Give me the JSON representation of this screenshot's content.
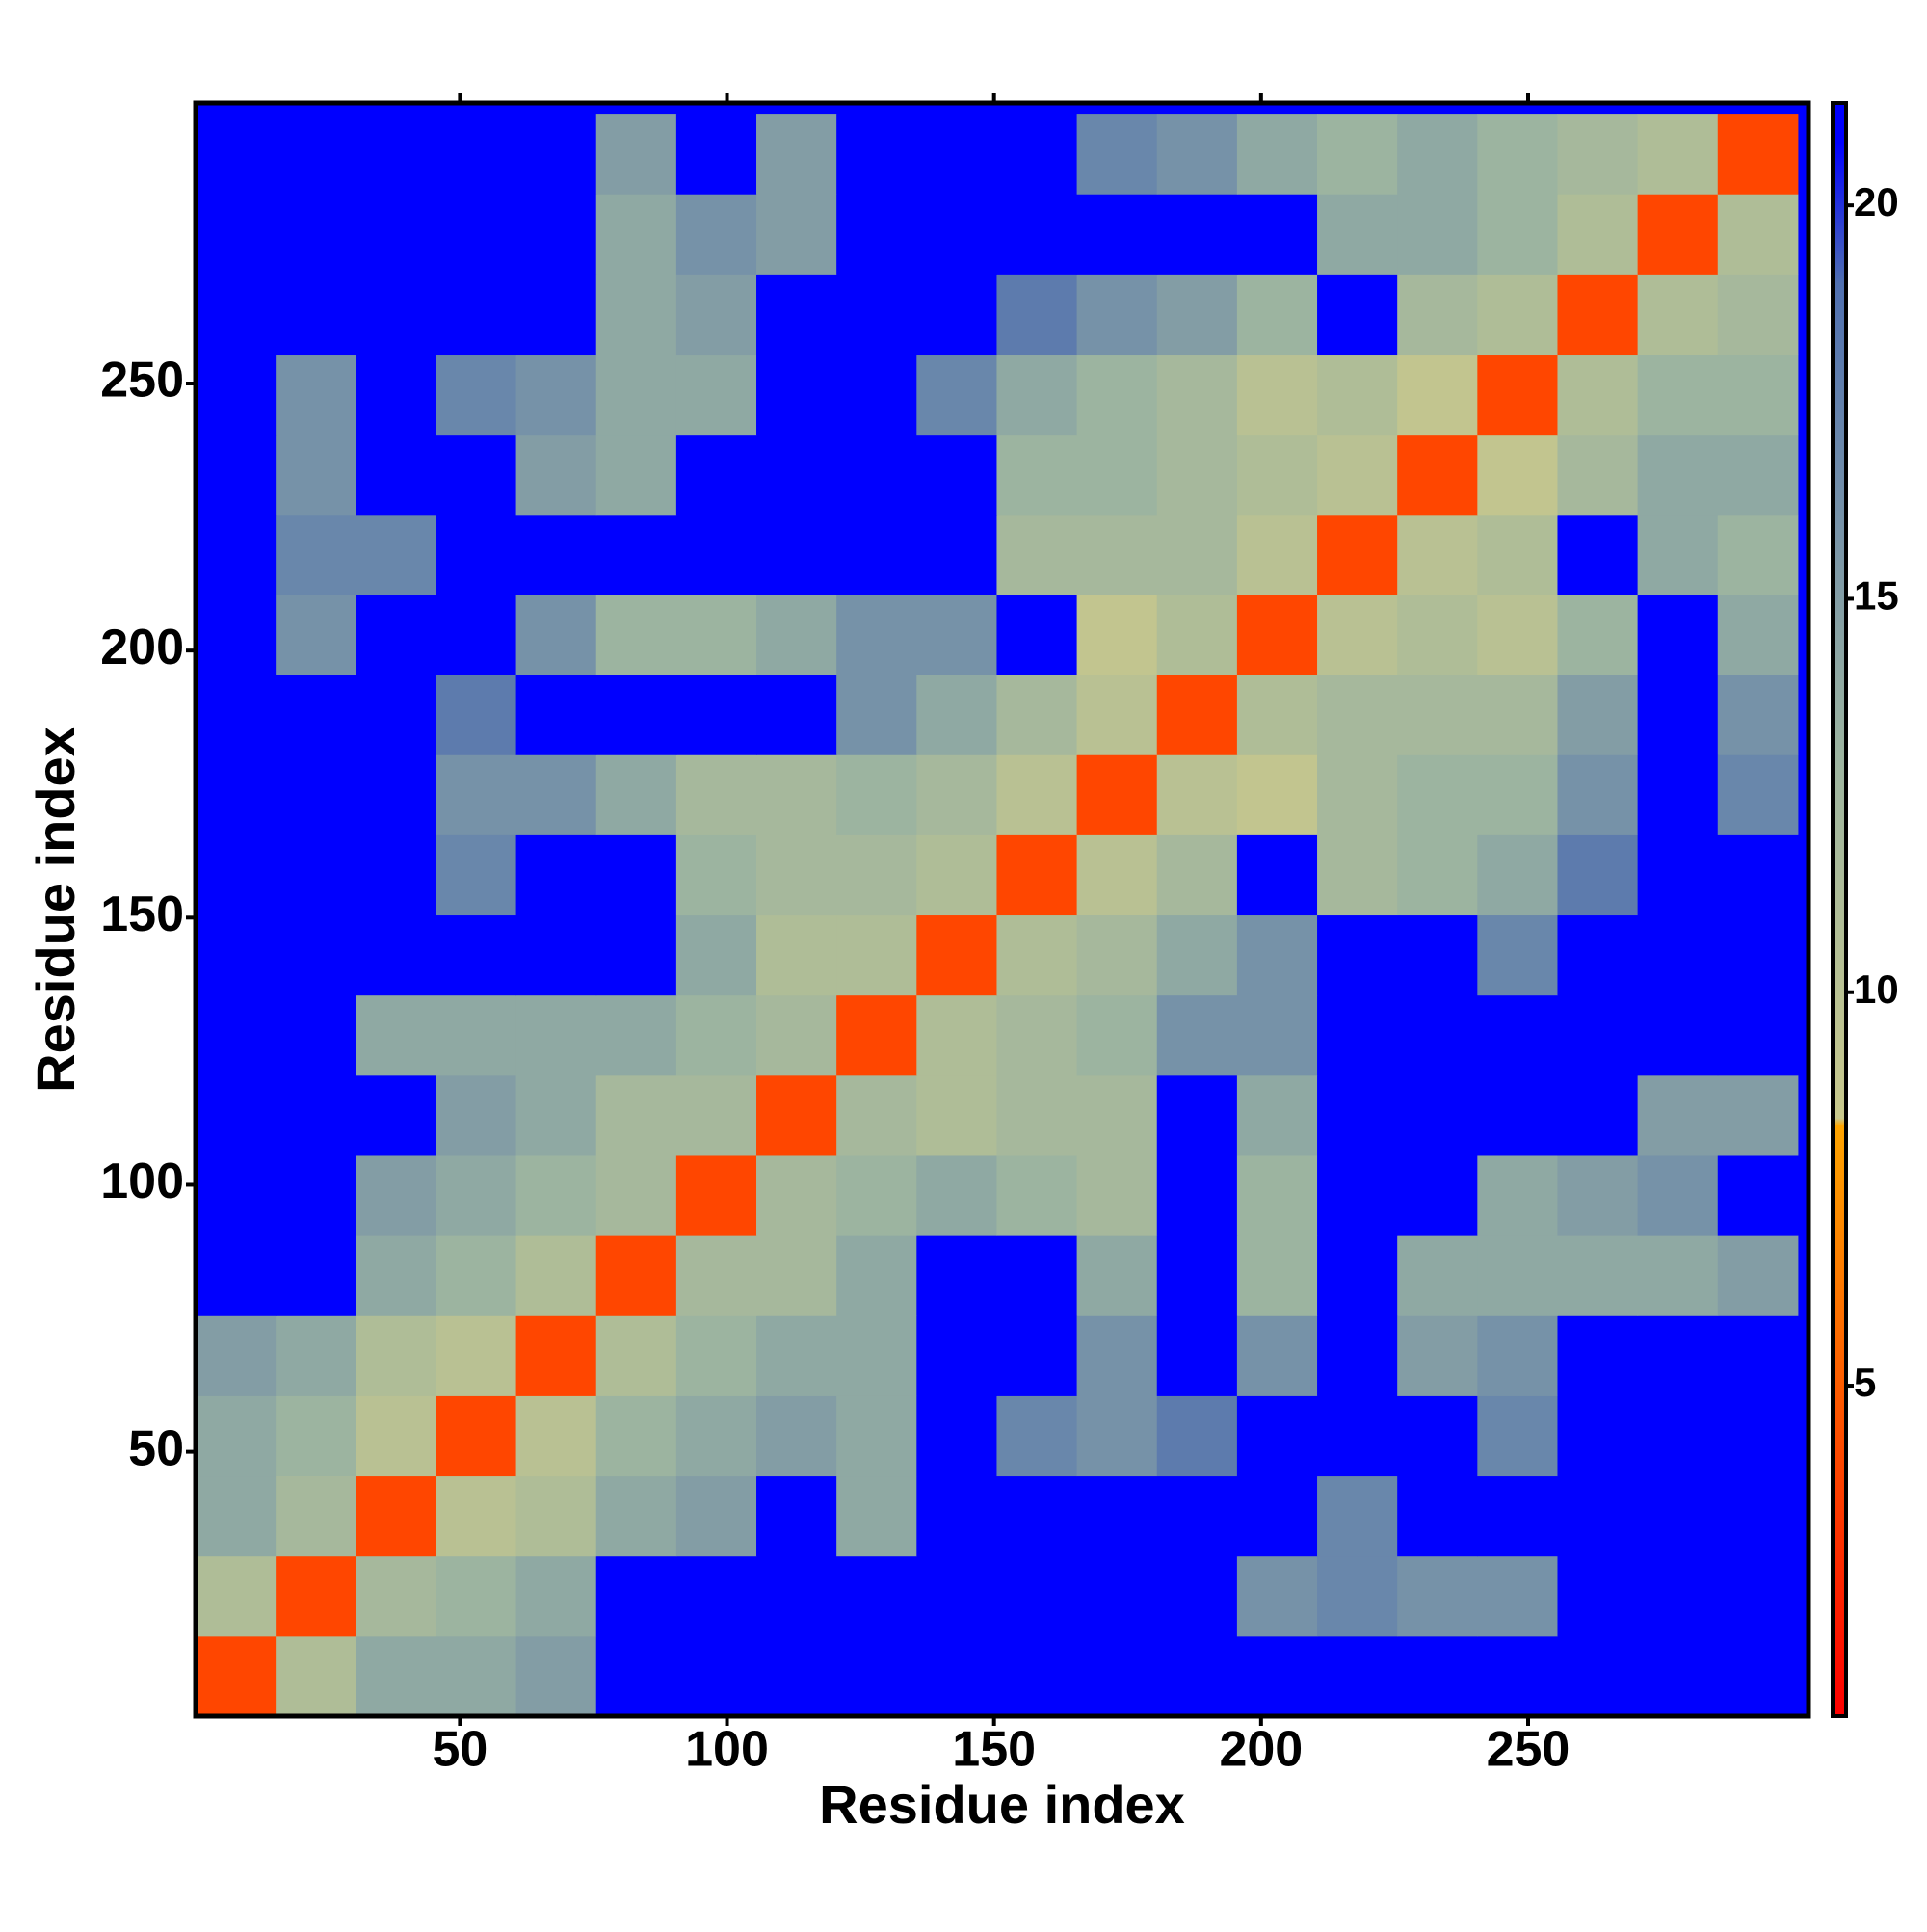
{
  "chart_data": {
    "type": "heatmap",
    "xlabel": "Residue index",
    "ylabel": "Residue index",
    "bins": [
      0.5,
      15.5,
      30.5,
      45.5,
      60.5,
      75.5,
      90.5,
      105.5,
      120.5,
      135.5,
      150.5,
      165.5,
      180.5,
      195.5,
      210.5,
      225.5,
      240.5,
      255.5,
      270.5,
      285.5,
      300.5
    ],
    "xlim": [
      0.5,
      302.5
    ],
    "ylim": [
      0.5,
      302.5
    ],
    "xticks": [
      50,
      100,
      150,
      200,
      250
    ],
    "yticks": [
      50,
      100,
      150,
      200,
      250
    ],
    "values": [
      [
        4,
        11,
        14,
        14,
        15,
        21,
        21,
        21,
        21,
        21,
        21,
        21,
        21,
        21,
        21,
        21,
        21,
        21,
        21,
        21
      ],
      [
        11,
        4,
        12,
        13,
        14,
        21,
        21,
        21,
        21,
        21,
        21,
        21,
        21,
        16,
        17,
        16,
        16,
        21,
        21,
        21
      ],
      [
        14,
        12,
        4,
        10,
        11,
        14,
        15,
        21,
        14,
        21,
        21,
        21,
        21,
        21,
        17,
        21,
        21,
        21,
        21,
        21
      ],
      [
        14,
        13,
        10,
        4,
        10,
        13,
        14,
        15,
        14,
        21,
        17,
        16,
        18,
        21,
        21,
        21,
        17,
        21,
        21,
        21
      ],
      [
        15,
        14,
        11,
        10,
        4,
        11,
        13,
        14,
        14,
        21,
        21,
        16,
        21,
        16,
        21,
        15,
        16,
        21,
        21,
        21
      ],
      [
        21,
        21,
        14,
        13,
        11,
        4,
        12,
        12,
        14,
        21,
        21,
        14,
        21,
        13,
        21,
        14,
        14,
        14,
        14,
        15
      ],
      [
        21,
        21,
        15,
        14,
        13,
        12,
        4,
        12,
        13,
        14,
        13,
        12,
        21,
        13,
        21,
        21,
        14,
        15,
        16,
        21
      ],
      [
        21,
        21,
        21,
        15,
        14,
        12,
        12,
        4,
        12,
        11,
        12,
        12,
        21,
        14,
        21,
        21,
        21,
        21,
        15,
        15
      ],
      [
        21,
        21,
        14,
        14,
        14,
        14,
        13,
        12,
        4,
        11,
        12,
        13,
        16,
        16,
        21,
        21,
        21,
        21,
        21,
        21
      ],
      [
        21,
        21,
        21,
        21,
        21,
        21,
        14,
        11,
        11,
        4,
        11,
        12,
        14,
        16,
        21,
        21,
        17,
        21,
        21,
        21
      ],
      [
        21,
        21,
        21,
        17,
        21,
        21,
        13,
        12,
        12,
        11,
        4,
        10,
        12,
        21,
        12,
        13,
        14,
        18,
        21,
        21
      ],
      [
        21,
        21,
        21,
        16,
        16,
        14,
        12,
        12,
        13,
        12,
        10,
        4,
        10,
        9,
        12,
        13,
        13,
        16,
        21,
        17
      ],
      [
        21,
        21,
        21,
        18,
        21,
        21,
        21,
        21,
        16,
        14,
        12,
        10,
        4,
        11,
        12,
        12,
        12,
        15,
        21,
        16
      ],
      [
        21,
        16,
        21,
        21,
        16,
        13,
        13,
        14,
        16,
        16,
        21,
        9,
        11,
        4,
        10,
        11,
        10,
        13,
        21,
        14
      ],
      [
        21,
        17,
        17,
        21,
        21,
        21,
        21,
        21,
        21,
        21,
        12,
        12,
        12,
        10,
        4,
        10,
        11,
        21,
        14,
        13
      ],
      [
        21,
        16,
        21,
        21,
        15,
        14,
        21,
        21,
        21,
        21,
        13,
        13,
        12,
        11,
        10,
        4,
        9,
        12,
        14,
        14
      ],
      [
        21,
        16,
        21,
        17,
        16,
        14,
        14,
        21,
        21,
        17,
        14,
        13,
        12,
        10,
        11,
        9,
        4,
        11,
        13,
        13
      ],
      [
        21,
        21,
        21,
        21,
        21,
        14,
        15,
        21,
        21,
        21,
        18,
        16,
        15,
        13,
        21,
        12,
        11,
        4,
        11,
        12
      ],
      [
        21,
        21,
        21,
        21,
        21,
        14,
        16,
        15,
        21,
        21,
        21,
        21,
        21,
        21,
        14,
        14,
        13,
        11,
        4,
        11
      ],
      [
        21,
        21,
        21,
        21,
        21,
        15,
        21,
        15,
        21,
        21,
        21,
        17,
        16,
        14,
        13,
        14,
        13,
        12,
        11,
        4
      ]
    ],
    "colorscale": [
      [
        0.8,
        "#ff0000"
      ],
      [
        8.3,
        "#ffa500"
      ],
      [
        8.4,
        "#c8c88c"
      ],
      [
        13,
        "#9cb4a0"
      ],
      [
        19,
        "#5070b0"
      ],
      [
        20.8,
        "#0000ff"
      ]
    ],
    "colorbar": {
      "lim": [
        0.8,
        21.3
      ],
      "ticks": [
        5,
        10,
        15,
        20
      ]
    }
  }
}
